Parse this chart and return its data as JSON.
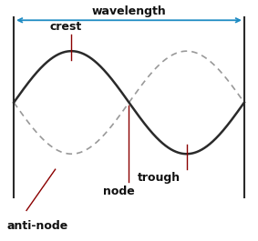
{
  "bg_color": "#ffffff",
  "wave_color": "#2a2a2a",
  "dashed_color": "#999999",
  "annot_color": "#8b0000",
  "arrow_color": "#1e8bc3",
  "font_size": 9,
  "font_weight": "bold",
  "font_color": "#111111",
  "labels": {
    "wavelength": "wavelength",
    "crest": "crest",
    "trough": "trough",
    "node": "node",
    "anti_node": "anti-node"
  },
  "xlim": [
    -0.15,
    4.15
  ],
  "ylim": [
    -2.6,
    1.9
  ],
  "wave_x_start": 0.0,
  "wave_x_end": 4.0
}
